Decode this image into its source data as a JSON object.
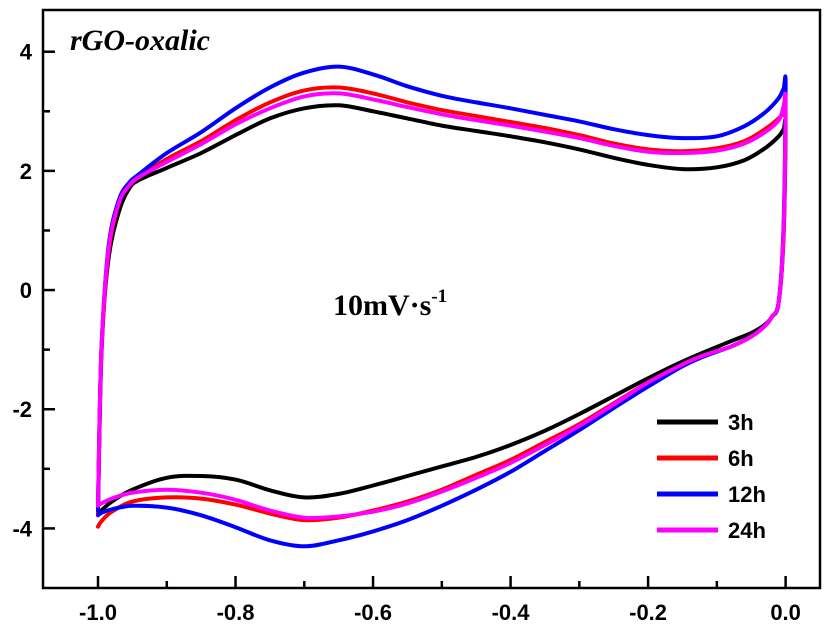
{
  "chart_data": {
    "type": "line",
    "title": "rGO-oxalic",
    "xlabel": "",
    "ylabel": "",
    "xlim": [
      -1.08,
      0.05
    ],
    "ylim": [
      -5.0,
      4.7
    ],
    "xticks": [
      -1.0,
      -0.8,
      -0.6,
      -0.4,
      -0.2,
      0.0
    ],
    "xtick_labels": [
      "-1.0",
      "-0.8",
      "-0.6",
      "-0.4",
      "-0.2",
      "0.0"
    ],
    "yticks": [
      -4,
      -2,
      0,
      2,
      4
    ],
    "ytick_labels": [
      "-4",
      "-2",
      "0",
      "2",
      "4"
    ],
    "grid": false,
    "legend_position": "bottom-right",
    "annotation": {
      "text": "10mV·s",
      "superscript": "-1"
    },
    "series": [
      {
        "name": "3h",
        "color": "#000000",
        "x": [
          -1.0,
          -0.995,
          -0.985,
          -0.97,
          -0.955,
          -0.94,
          -0.9,
          -0.85,
          -0.8,
          -0.75,
          -0.7,
          -0.65,
          -0.6,
          -0.55,
          -0.5,
          -0.45,
          -0.4,
          -0.35,
          -0.3,
          -0.25,
          -0.2,
          -0.15,
          -0.1,
          -0.06,
          -0.03,
          -0.01,
          -0.003,
          0.0,
          -0.003,
          -0.01,
          -0.02,
          -0.03,
          -0.05,
          -0.08,
          -0.12,
          -0.15,
          -0.2,
          -0.25,
          -0.3,
          -0.35,
          -0.4,
          -0.45,
          -0.5,
          -0.55,
          -0.6,
          -0.65,
          -0.7,
          -0.75,
          -0.8,
          -0.85,
          -0.9,
          -0.95,
          -0.98,
          -0.995,
          -1.0
        ],
        "y": [
          -3.6,
          -1.0,
          0.5,
          1.3,
          1.7,
          1.85,
          2.05,
          2.3,
          2.6,
          2.88,
          3.05,
          3.1,
          3.0,
          2.88,
          2.76,
          2.67,
          2.58,
          2.48,
          2.36,
          2.22,
          2.1,
          2.03,
          2.06,
          2.18,
          2.38,
          2.58,
          2.7,
          2.73,
          0.9,
          -0.2,
          -0.45,
          -0.58,
          -0.72,
          -0.86,
          -1.05,
          -1.2,
          -1.48,
          -1.78,
          -2.08,
          -2.36,
          -2.6,
          -2.8,
          -2.96,
          -3.12,
          -3.28,
          -3.42,
          -3.48,
          -3.36,
          -3.18,
          -3.12,
          -3.15,
          -3.35,
          -3.55,
          -3.7,
          -3.75
        ]
      },
      {
        "name": "6h",
        "color": "#ff0000",
        "x": [
          -1.0,
          -0.995,
          -0.985,
          -0.97,
          -0.955,
          -0.94,
          -0.9,
          -0.85,
          -0.8,
          -0.75,
          -0.7,
          -0.65,
          -0.6,
          -0.55,
          -0.5,
          -0.45,
          -0.4,
          -0.35,
          -0.3,
          -0.25,
          -0.2,
          -0.15,
          -0.1,
          -0.06,
          -0.03,
          -0.01,
          -0.003,
          0.0,
          -0.003,
          -0.01,
          -0.02,
          -0.03,
          -0.05,
          -0.08,
          -0.12,
          -0.15,
          -0.2,
          -0.25,
          -0.3,
          -0.35,
          -0.4,
          -0.45,
          -0.5,
          -0.55,
          -0.6,
          -0.65,
          -0.7,
          -0.75,
          -0.8,
          -0.85,
          -0.9,
          -0.95,
          -0.98,
          -0.995,
          -1.0
        ],
        "y": [
          -3.75,
          -1.1,
          0.6,
          1.45,
          1.75,
          1.9,
          2.2,
          2.5,
          2.85,
          3.15,
          3.35,
          3.4,
          3.3,
          3.15,
          3.02,
          2.92,
          2.82,
          2.72,
          2.6,
          2.46,
          2.36,
          2.33,
          2.38,
          2.5,
          2.7,
          2.88,
          2.98,
          3.0,
          1.0,
          -0.2,
          -0.45,
          -0.6,
          -0.78,
          -0.95,
          -1.1,
          -1.25,
          -1.55,
          -1.9,
          -2.25,
          -2.55,
          -2.85,
          -3.1,
          -3.35,
          -3.55,
          -3.7,
          -3.82,
          -3.86,
          -3.75,
          -3.6,
          -3.5,
          -3.48,
          -3.55,
          -3.72,
          -3.88,
          -3.97
        ]
      },
      {
        "name": "12h",
        "color": "#0000ff",
        "x": [
          -1.0,
          -0.995,
          -0.985,
          -0.97,
          -0.955,
          -0.94,
          -0.9,
          -0.85,
          -0.8,
          -0.75,
          -0.7,
          -0.65,
          -0.6,
          -0.55,
          -0.5,
          -0.45,
          -0.4,
          -0.35,
          -0.3,
          -0.25,
          -0.2,
          -0.15,
          -0.1,
          -0.06,
          -0.03,
          -0.01,
          -0.003,
          0.0,
          -0.003,
          -0.01,
          -0.02,
          -0.03,
          -0.05,
          -0.08,
          -0.12,
          -0.15,
          -0.2,
          -0.25,
          -0.3,
          -0.35,
          -0.4,
          -0.45,
          -0.5,
          -0.55,
          -0.6,
          -0.65,
          -0.7,
          -0.75,
          -0.8,
          -0.85,
          -0.9,
          -0.95,
          -0.98,
          -0.995,
          -1.0
        ],
        "y": [
          -3.7,
          -1.05,
          0.7,
          1.5,
          1.8,
          1.95,
          2.3,
          2.65,
          3.05,
          3.4,
          3.65,
          3.75,
          3.62,
          3.42,
          3.26,
          3.15,
          3.05,
          2.94,
          2.83,
          2.7,
          2.6,
          2.55,
          2.58,
          2.75,
          2.98,
          3.22,
          3.38,
          3.42,
          1.1,
          -0.2,
          -0.45,
          -0.6,
          -0.78,
          -0.95,
          -1.12,
          -1.28,
          -1.62,
          -1.98,
          -2.35,
          -2.7,
          -3.05,
          -3.35,
          -3.62,
          -3.86,
          -4.05,
          -4.2,
          -4.3,
          -4.2,
          -3.98,
          -3.78,
          -3.65,
          -3.62,
          -3.68,
          -3.74,
          -3.78
        ]
      },
      {
        "name": "24h",
        "color": "#ff00ff",
        "x": [
          -1.0,
          -0.995,
          -0.985,
          -0.97,
          -0.955,
          -0.94,
          -0.9,
          -0.85,
          -0.8,
          -0.75,
          -0.7,
          -0.65,
          -0.6,
          -0.55,
          -0.5,
          -0.45,
          -0.4,
          -0.35,
          -0.3,
          -0.25,
          -0.2,
          -0.15,
          -0.1,
          -0.06,
          -0.03,
          -0.01,
          -0.003,
          0.0,
          -0.003,
          -0.01,
          -0.02,
          -0.03,
          -0.05,
          -0.08,
          -0.12,
          -0.15,
          -0.2,
          -0.25,
          -0.3,
          -0.35,
          -0.4,
          -0.45,
          -0.5,
          -0.55,
          -0.6,
          -0.65,
          -0.7,
          -0.75,
          -0.8,
          -0.85,
          -0.9,
          -0.95,
          -0.98,
          -0.995,
          -1.0
        ],
        "y": [
          -3.6,
          -1.0,
          0.65,
          1.45,
          1.75,
          1.9,
          2.15,
          2.45,
          2.78,
          3.05,
          3.25,
          3.3,
          3.2,
          3.07,
          2.95,
          2.85,
          2.76,
          2.66,
          2.55,
          2.42,
          2.32,
          2.3,
          2.34,
          2.46,
          2.65,
          2.85,
          3.08,
          3.15,
          1.0,
          -0.2,
          -0.45,
          -0.6,
          -0.78,
          -0.95,
          -1.1,
          -1.25,
          -1.55,
          -1.92,
          -2.28,
          -2.6,
          -2.9,
          -3.15,
          -3.38,
          -3.58,
          -3.72,
          -3.8,
          -3.82,
          -3.7,
          -3.52,
          -3.4,
          -3.35,
          -3.4,
          -3.5,
          -3.58,
          -3.62
        ]
      }
    ]
  }
}
